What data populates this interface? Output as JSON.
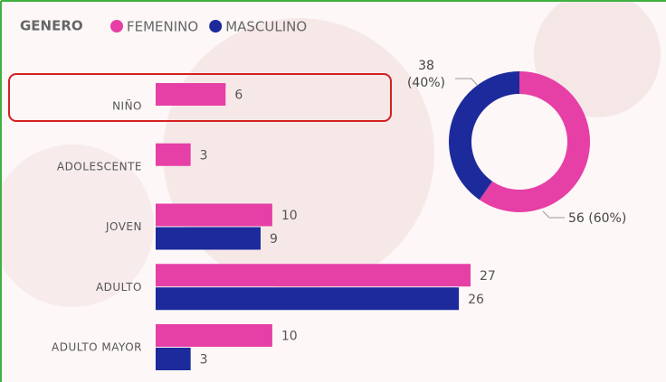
{
  "chart_data": [
    {
      "type": "bar",
      "orientation": "horizontal",
      "legend_title": "GENERO",
      "categories": [
        "NIÑO",
        "ADOLESCENTE",
        "JOVEN",
        "ADULTO",
        "ADULTO MAYOR"
      ],
      "series": [
        {
          "name": "FEMENINO",
          "color": "#e63fa6",
          "values": [
            6,
            3,
            10,
            27,
            10
          ]
        },
        {
          "name": "MASCULINO",
          "color": "#1c2a9c",
          "values": [
            null,
            null,
            9,
            26,
            3
          ]
        }
      ]
    },
    {
      "type": "donut",
      "categories": [
        "FEMENINO",
        "MASCULINO"
      ],
      "values": [
        56,
        38
      ],
      "value_labels": [
        "56 (60%)",
        "38 (40%)"
      ],
      "colors": [
        "#e63fa6",
        "#1c2a9c"
      ]
    }
  ]
}
